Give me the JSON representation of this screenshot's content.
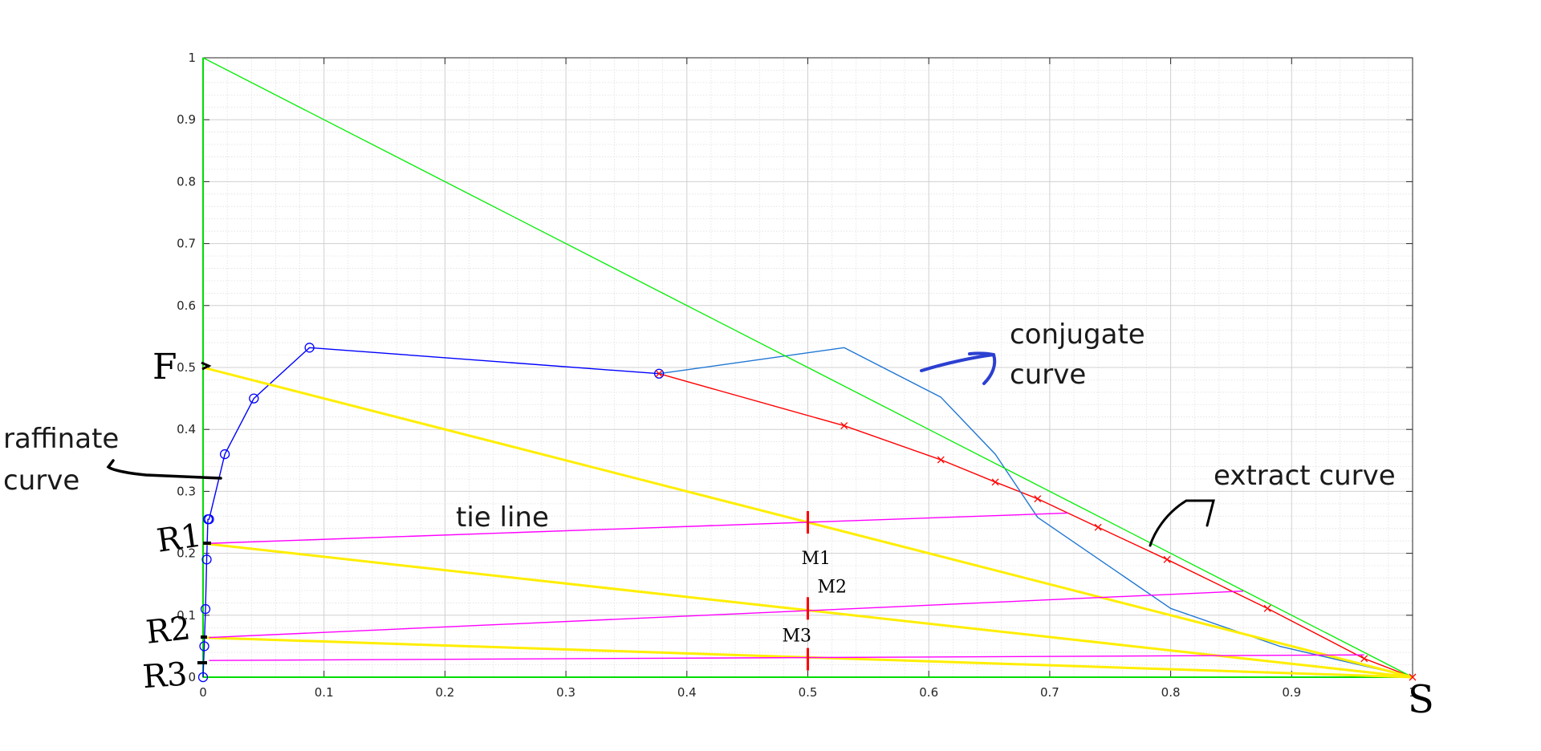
{
  "chart_data": {
    "type": "line",
    "title": "",
    "xlabel": "",
    "ylabel": "",
    "xlim": [
      0,
      1
    ],
    "ylim": [
      0,
      1
    ],
    "grid": true,
    "minor_grid": true,
    "x_ticks": [
      "0",
      "0.1",
      "0.2",
      "0.3",
      "0.4",
      "0.5",
      "0.6",
      "0.7",
      "0.8",
      "0.9",
      "1"
    ],
    "y_ticks": [
      "0",
      "0.1",
      "0.2",
      "0.3",
      "0.4",
      "0.5",
      "0.6",
      "0.7",
      "0.8",
      "0.9",
      "1"
    ],
    "series": [
      {
        "key": "raffinate",
        "color": "#0000ff",
        "marker": "circle",
        "x": [
          0,
          0.001,
          0.002,
          0.003,
          0.004,
          0.005,
          0.018,
          0.042,
          0.088,
          0.377
        ],
        "y": [
          0,
          0.05,
          0.11,
          0.19,
          0.255,
          0.255,
          0.36,
          0.45,
          0.532,
          0.49
        ]
      },
      {
        "key": "extract",
        "color": "#ff0000",
        "marker": "x",
        "x": [
          0.377,
          0.53,
          0.61,
          0.655,
          0.69,
          0.74,
          0.797,
          0.88,
          0.96,
          1.0
        ],
        "y": [
          0.49,
          0.406,
          0.351,
          0.315,
          0.288,
          0.242,
          0.19,
          0.111,
          0.03,
          0.0
        ]
      },
      {
        "key": "conjugate",
        "color": "#1f77d4",
        "marker": "none",
        "x": [
          0.377,
          0.53,
          0.61,
          0.655,
          0.69,
          0.8,
          0.89,
          1.0
        ],
        "y": [
          0.49,
          0.532,
          0.452,
          0.36,
          0.258,
          0.111,
          0.05,
          0.0
        ]
      },
      {
        "key": "diagonal",
        "color": "#00ee00",
        "marker": "none",
        "x": [
          0,
          1
        ],
        "y": [
          1,
          0
        ]
      },
      {
        "key": "F-S",
        "color": "#ffee00",
        "marker": "none",
        "x": [
          0,
          1
        ],
        "y": [
          0.5,
          0
        ]
      },
      {
        "key": "R1-S",
        "color": "#ffee00",
        "marker": "none",
        "x": [
          0,
          1
        ],
        "y": [
          0.216,
          0
        ]
      },
      {
        "key": "R2-S",
        "color": "#ffee00",
        "marker": "none",
        "x": [
          0,
          1
        ],
        "y": [
          0.064,
          0
        ]
      },
      {
        "key": "tie1",
        "color": "#ff00ff",
        "marker": "none",
        "x": [
          0.005,
          0.715
        ],
        "y": [
          0.216,
          0.265
        ]
      },
      {
        "key": "tie2",
        "color": "#ff00ff",
        "marker": "none",
        "x": [
          0.005,
          0.86
        ],
        "y": [
          0.064,
          0.139
        ]
      },
      {
        "key": "tie3",
        "color": "#ff00ff",
        "marker": "none",
        "x": [
          0.005,
          0.96
        ],
        "y": [
          0.027,
          0.036
        ]
      }
    ],
    "annotations": {
      "conjugate": [
        "conjugate",
        "curve"
      ],
      "raffinate": [
        "raffinate",
        "curve"
      ],
      "extract": "extract curve",
      "tie_line": "tie line",
      "F": "F",
      "R1": "R1",
      "R2": "R2",
      "R3": "R3",
      "S": "S",
      "M1": "M1",
      "M2": "M2",
      "M3": "M3"
    },
    "mixing_points": [
      {
        "label": "M1",
        "x": 0.5,
        "y": 0.25
      },
      {
        "label": "M2",
        "x": 0.5,
        "y": 0.111
      },
      {
        "label": "M3",
        "x": 0.5,
        "y": 0.029
      }
    ]
  }
}
